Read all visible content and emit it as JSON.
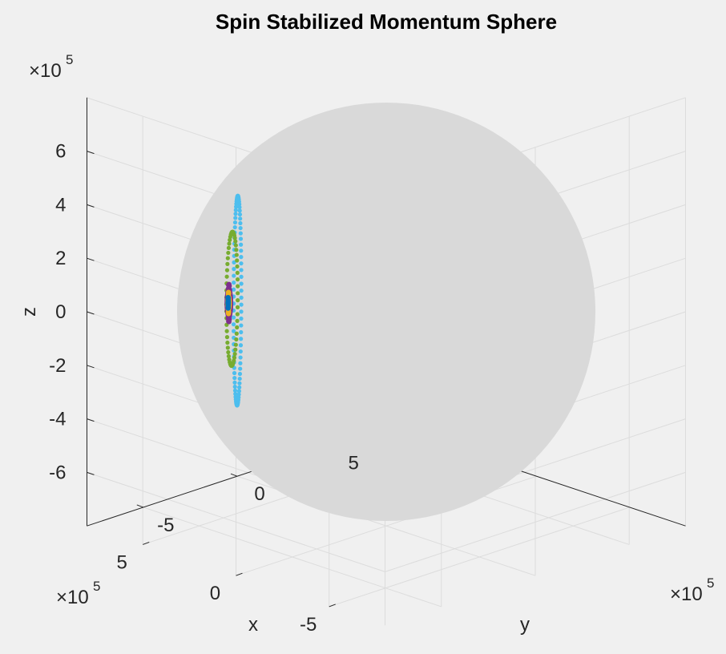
{
  "chart_data": {
    "type": "scatter",
    "projection": "3d",
    "title": "Spin Stabilized Momentum Sphere",
    "xlabel": "x",
    "ylabel": "y",
    "zlabel": "z",
    "x_multiplier": "×10^5",
    "y_multiplier": "×10^5",
    "z_multiplier": "×10^5",
    "xlim": [
      -8,
      8
    ],
    "ylim": [
      -8,
      8
    ],
    "zlim": [
      -8,
      8
    ],
    "x_ticks": [
      "5",
      "0",
      "-5"
    ],
    "y_ticks": [
      "-5",
      "0",
      "5"
    ],
    "z_ticks": [
      "6",
      "4",
      "2",
      "0",
      "-2",
      "-4",
      "-6"
    ],
    "grid": true,
    "sphere": {
      "radius": 7.8,
      "color": "#d9d9d9"
    },
    "series": [
      {
        "color": "#4dbeee",
        "center": [
          7.26,
          -0.72,
          -1.1
        ],
        "amplitudes": [
          0.7,
          0.9,
          3.9
        ]
      },
      {
        "color": "#77ac30",
        "center": [
          7.55,
          -0.72,
          -1.1
        ],
        "amplitudes": [
          0.3,
          0.6,
          2.5
        ]
      },
      {
        "color": "#7e2f8e",
        "center": [
          7.72,
          -0.72,
          -1.3
        ],
        "amplitudes": [
          0.05,
          0.1,
          0.7
        ]
      },
      {
        "color": "#edb120",
        "center": [
          7.74,
          -0.72,
          -1.3
        ],
        "amplitudes": [
          0.03,
          0.05,
          0.4
        ]
      },
      {
        "color": "#0072bd",
        "center": [
          7.76,
          -0.72,
          -1.3
        ],
        "amplitudes": [
          0.02,
          0.02,
          0.2
        ]
      }
    ]
  }
}
